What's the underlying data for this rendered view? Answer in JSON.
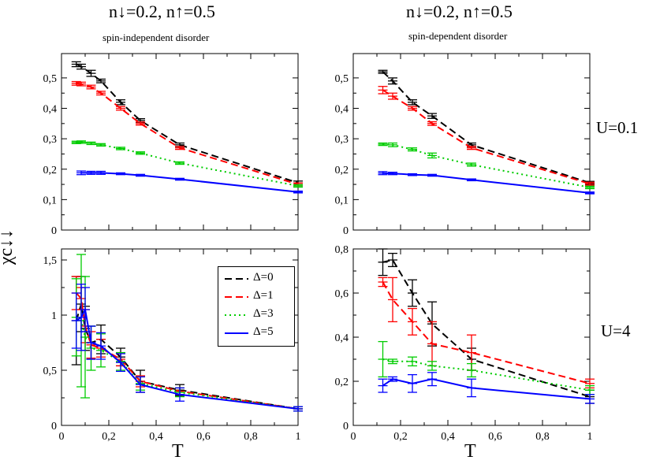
{
  "figure": {
    "ylabel": "χc↓↓",
    "xlabel": "T",
    "row_labels": [
      "U=0.1",
      "U=4"
    ],
    "columns": [
      {
        "title": "n↓=0.2, n↑=0.5",
        "subtitle": "spin-independent disorder"
      },
      {
        "title": "n↓=0.2, n↑=0.5",
        "subtitle": "spin-dependent disorder"
      }
    ]
  },
  "legend": {
    "placement": "upper-right of bottom-left panel",
    "entries": [
      "Δ=0",
      "Δ=1",
      "Δ=3",
      "Δ=5"
    ]
  },
  "colors": {
    "delta0": "#000000",
    "delta1": "#ff0000",
    "delta3": "#00cc00",
    "delta5": "#0000ff"
  },
  "chart_data": [
    {
      "type": "line",
      "panel": "top-left",
      "xlim": [
        0,
        1
      ],
      "ylim": [
        0,
        0.58
      ],
      "yticks": [
        0,
        0.1,
        0.2,
        0.3,
        0.4,
        0.5
      ],
      "ytick_labels": [
        "0",
        "0,1",
        "0,2",
        "0,3",
        "0,4",
        "0,5"
      ],
      "xtick_labels": [],
      "grid": false,
      "series": [
        {
          "name": "Δ=0",
          "x": [
            0.0625,
            0.0833,
            0.125,
            0.1667,
            0.25,
            0.3333,
            0.5,
            1.0
          ],
          "y": [
            0.545,
            0.537,
            0.515,
            0.49,
            0.42,
            0.36,
            0.28,
            0.155
          ],
          "err": [
            0.008,
            0.008,
            0.01,
            0.006,
            0.008,
            0.006,
            0.006,
            0.006
          ]
        },
        {
          "name": "Δ=1",
          "x": [
            0.0625,
            0.0833,
            0.125,
            0.1667,
            0.25,
            0.3333,
            0.5,
            1.0
          ],
          "y": [
            0.482,
            0.48,
            0.47,
            0.45,
            0.4,
            0.35,
            0.27,
            0.15
          ],
          "err": [
            0.006,
            0.006,
            0.006,
            0.006,
            0.006,
            0.005,
            0.005,
            0.005
          ]
        },
        {
          "name": "Δ=3",
          "x": [
            0.0625,
            0.0833,
            0.125,
            0.1667,
            0.25,
            0.3333,
            0.5,
            1.0
          ],
          "y": [
            0.288,
            0.289,
            0.285,
            0.28,
            0.268,
            0.253,
            0.22,
            0.145
          ],
          "err": [
            0.004,
            0.004,
            0.004,
            0.004,
            0.004,
            0.004,
            0.004,
            0.004
          ]
        },
        {
          "name": "Δ=5",
          "x": [
            0.0833,
            0.125,
            0.1667,
            0.25,
            0.3333,
            0.5,
            1.0
          ],
          "y": [
            0.188,
            0.188,
            0.188,
            0.185,
            0.18,
            0.167,
            0.125
          ],
          "err": [
            0.006,
            0.005,
            0.005,
            0.003,
            0.003,
            0.003,
            0.003
          ]
        }
      ]
    },
    {
      "type": "line",
      "panel": "top-right",
      "xlim": [
        0,
        1
      ],
      "ylim": [
        0,
        0.58
      ],
      "yticks": [
        0,
        0.1,
        0.2,
        0.3,
        0.4,
        0.5
      ],
      "ytick_labels": [
        "0",
        "0,1",
        "0,2",
        "0,3",
        "0,4",
        "0,5"
      ],
      "xtick_labels": [],
      "grid": false,
      "series": [
        {
          "name": "Δ=0",
          "x": [
            0.125,
            0.1667,
            0.25,
            0.3333,
            0.5,
            1.0
          ],
          "y": [
            0.52,
            0.49,
            0.42,
            0.375,
            0.28,
            0.155
          ],
          "err": [
            0.005,
            0.01,
            0.008,
            0.008,
            0.006,
            0.005
          ]
        },
        {
          "name": "Δ=1",
          "x": [
            0.125,
            0.1667,
            0.25,
            0.3333,
            0.5,
            1.0
          ],
          "y": [
            0.46,
            0.44,
            0.4,
            0.35,
            0.27,
            0.152
          ],
          "err": [
            0.012,
            0.01,
            0.006,
            0.006,
            0.005,
            0.005
          ]
        },
        {
          "name": "Δ=3",
          "x": [
            0.125,
            0.1667,
            0.25,
            0.3333,
            0.5,
            1.0
          ],
          "y": [
            0.282,
            0.28,
            0.265,
            0.245,
            0.215,
            0.14
          ],
          "err": [
            0.004,
            0.006,
            0.005,
            0.008,
            0.005,
            0.004
          ]
        },
        {
          "name": "Δ=5",
          "x": [
            0.125,
            0.1667,
            0.25,
            0.3333,
            0.5,
            1.0
          ],
          "y": [
            0.187,
            0.186,
            0.182,
            0.18,
            0.165,
            0.122
          ],
          "err": [
            0.005,
            0.004,
            0.003,
            0.003,
            0.003,
            0.003
          ]
        }
      ]
    },
    {
      "type": "line",
      "panel": "bottom-left",
      "xlim": [
        0,
        1
      ],
      "ylim": [
        0,
        1.6
      ],
      "yticks": [
        0,
        0.5,
        1,
        1.5
      ],
      "ytick_labels": [
        "0",
        "0,5",
        "1",
        "1,5"
      ],
      "xticks": [
        0,
        0.2,
        0.4,
        0.6,
        0.8,
        1
      ],
      "xtick_labels": [
        "0",
        "0,2",
        "0,4",
        "0,6",
        "0,8",
        "1"
      ],
      "grid": false,
      "series": [
        {
          "name": "Δ=0",
          "x": [
            0.0625,
            0.0833,
            0.1,
            0.125,
            0.1667,
            0.25,
            0.3333,
            0.5,
            1.0
          ],
          "y": [
            0.95,
            1.1,
            0.88,
            0.75,
            0.78,
            0.62,
            0.4,
            0.32,
            0.15
          ],
          "err": [
            0.4,
            0.25,
            0.2,
            0.15,
            0.13,
            0.08,
            0.1,
            0.05,
            0.02
          ]
        },
        {
          "name": "Δ=1",
          "x": [
            0.0625,
            0.0833,
            0.1,
            0.125,
            0.1667,
            0.25,
            0.3333,
            0.5,
            1.0
          ],
          "y": [
            1.2,
            1.15,
            0.9,
            0.73,
            0.7,
            0.6,
            0.4,
            0.31,
            0.15
          ],
          "err": [
            0.15,
            0.1,
            0.15,
            0.12,
            0.08,
            0.06,
            0.05,
            0.03,
            0.02
          ]
        },
        {
          "name": "Δ=3",
          "x": [
            0.0625,
            0.0833,
            0.1,
            0.125,
            0.1667,
            0.25,
            0.3333,
            0.5,
            1.0
          ],
          "y": [
            0.98,
            0.95,
            0.8,
            0.7,
            0.68,
            0.58,
            0.38,
            0.3,
            0.15
          ],
          "err": [
            0.35,
            0.6,
            0.55,
            0.2,
            0.15,
            0.08,
            0.06,
            0.04,
            0.02
          ]
        },
        {
          "name": "Δ=5",
          "x": [
            0.0625,
            0.0833,
            0.1,
            0.125,
            0.1667,
            0.25,
            0.3333,
            0.5,
            1.0
          ],
          "y": [
            0.95,
            0.98,
            1.05,
            0.75,
            0.72,
            0.57,
            0.37,
            0.28,
            0.15
          ],
          "err": [
            0.25,
            0.3,
            0.2,
            0.15,
            0.12,
            0.08,
            0.07,
            0.06,
            0.02
          ]
        }
      ]
    },
    {
      "type": "line",
      "panel": "bottom-right",
      "xlim": [
        0,
        1
      ],
      "ylim": [
        0,
        0.8
      ],
      "yticks": [
        0,
        0.2,
        0.4,
        0.6,
        0.8
      ],
      "ytick_labels": [
        "0",
        "0,2",
        "0,4",
        "0,6",
        "0,8"
      ],
      "xticks": [
        0,
        0.2,
        0.4,
        0.6,
        0.8,
        1
      ],
      "xtick_labels": [
        "0",
        "0,2",
        "0,4",
        "0,6",
        "0,8",
        "1"
      ],
      "grid": false,
      "series": [
        {
          "name": "Δ=0",
          "x": [
            0.125,
            0.1667,
            0.25,
            0.3333,
            0.5,
            1.0
          ],
          "y": [
            0.74,
            0.75,
            0.6,
            0.46,
            0.3,
            0.13
          ],
          "err": [
            0.06,
            0.03,
            0.06,
            0.1,
            0.05,
            0.03
          ]
        },
        {
          "name": "Δ=1",
          "x": [
            0.125,
            0.1667,
            0.25,
            0.3333,
            0.5,
            1.0
          ],
          "y": [
            0.65,
            0.57,
            0.47,
            0.37,
            0.33,
            0.19
          ],
          "err": [
            0.02,
            0.1,
            0.06,
            0.1,
            0.08,
            0.02
          ]
        },
        {
          "name": "Δ=3",
          "x": [
            0.125,
            0.1667,
            0.25,
            0.3333,
            0.5,
            1.0
          ],
          "y": [
            0.3,
            0.29,
            0.29,
            0.27,
            0.25,
            0.16
          ],
          "err": [
            0.08,
            0.01,
            0.02,
            0.02,
            0.03,
            0.02
          ]
        },
        {
          "name": "Δ=5",
          "x": [
            0.125,
            0.1667,
            0.25,
            0.3333,
            0.5,
            1.0
          ],
          "y": [
            0.18,
            0.21,
            0.19,
            0.21,
            0.17,
            0.12
          ],
          "err": [
            0.03,
            0.01,
            0.04,
            0.03,
            0.04,
            0.02
          ]
        }
      ]
    }
  ]
}
